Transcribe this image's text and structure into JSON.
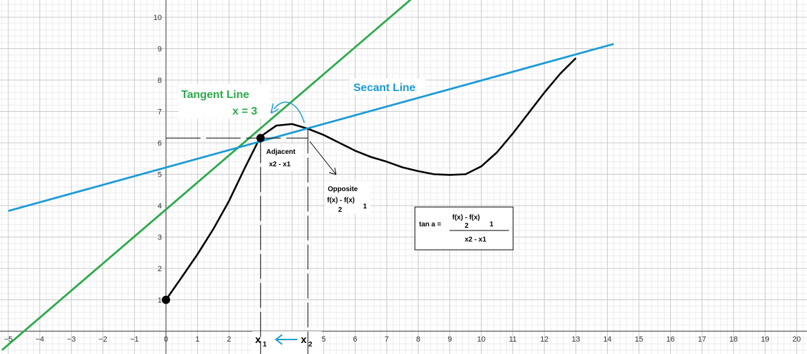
{
  "chart_data": {
    "type": "line",
    "xlim": [
      -5.5,
      20.3
    ],
    "ylim": [
      -0.8,
      10.6
    ],
    "grid": true,
    "x_ticks": [
      "−5",
      "−4",
      "−3",
      "−2",
      "−1",
      "0",
      "1",
      "2",
      "3",
      "4",
      "5",
      "6",
      "7",
      "8",
      "9",
      "10",
      "11",
      "12",
      "13",
      "14",
      "15",
      "16",
      "17",
      "18",
      "19",
      "20"
    ],
    "y_ticks": [
      "1",
      "2",
      "3",
      "4",
      "5",
      "6",
      "7",
      "8",
      "9",
      "10"
    ],
    "series": [
      {
        "color": "#000000",
        "x": [
          0,
          0.5,
          1,
          1.5,
          2,
          2.5,
          3,
          3.5,
          4,
          4.5,
          5,
          5.5,
          6,
          6.5,
          7,
          7.5,
          8,
          8.5,
          9,
          9.5,
          10,
          10.5,
          11,
          11.5,
          12,
          12.5,
          13
        ],
        "y": [
          1,
          1.72,
          2.45,
          3.25,
          4.15,
          5.2,
          6.2,
          6.55,
          6.6,
          6.45,
          6.25,
          6.0,
          5.75,
          5.55,
          5.4,
          5.22,
          5.1,
          5.0,
          4.98,
          5.0,
          5.25,
          5.7,
          6.3,
          6.95,
          7.6,
          8.2,
          8.7
        ]
      },
      {
        "name": "Tangent Line",
        "color": "#2aaa4a",
        "x": [
          -5.2,
          8.5
        ],
        "y": [
          -0.6,
          11.2
        ]
      },
      {
        "name": "Secant Line",
        "color": "#1a9ad6",
        "x": [
          -5,
          14.2
        ],
        "y": [
          3.83,
          9.15
        ]
      }
    ],
    "points": [
      {
        "x": 0,
        "y": 1
      },
      {
        "x": 3,
        "y": 6.15
      }
    ],
    "annotations": {
      "tangent_label": "Tangent Line",
      "tangent_eq": "x = 3",
      "secant_label": "Secant Line",
      "adjacent": "Adjacent",
      "adjacent_expr": "x2 - x1",
      "opposite": "Opposite",
      "opposite_expr_top": "f(x)  -  f(x)",
      "opposite_sub_1": "2",
      "opposite_sub_2": "1",
      "formula_lhs": "tan a =",
      "formula_num": "f(x)  -  f(x)",
      "formula_sub_1": "2",
      "formula_sub_2": "1",
      "formula_den": "x2 - x1",
      "x1_main": "x",
      "x1_sub": "1",
      "x2_main": "x",
      "x2_sub": "2"
    },
    "colors": {
      "tangent": "#2aaa4a",
      "secant": "#1a9ad6",
      "curve": "#000000",
      "arrow": "#1a9ad6"
    }
  }
}
